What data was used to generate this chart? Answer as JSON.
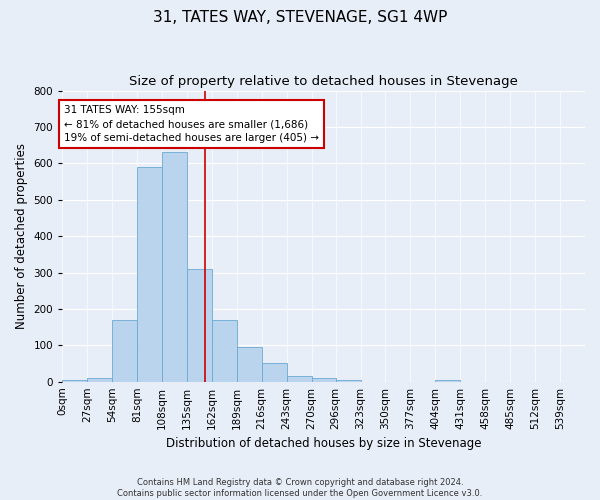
{
  "title": "31, TATES WAY, STEVENAGE, SG1 4WP",
  "subtitle": "Size of property relative to detached houses in Stevenage",
  "xlabel": "Distribution of detached houses by size in Stevenage",
  "ylabel": "Number of detached properties",
  "bar_color": "#bad4ed",
  "bar_edge_color": "#6aaad4",
  "background_color": "#e8eef8",
  "fig_background_color": "#e8eef8",
  "grid_color": "#ffffff",
  "bin_edges": [
    0,
    27,
    54,
    81,
    108,
    135,
    162,
    189,
    216,
    243,
    270,
    296,
    323,
    350,
    377,
    404,
    431,
    458,
    485,
    512,
    539
  ],
  "bar_heights": [
    5,
    10,
    170,
    590,
    630,
    310,
    170,
    95,
    50,
    15,
    10,
    5,
    0,
    0,
    0,
    5,
    0,
    0,
    0,
    0
  ],
  "ylim": [
    0,
    800
  ],
  "yticks": [
    0,
    100,
    200,
    300,
    400,
    500,
    600,
    700,
    800
  ],
  "property_size": 155,
  "vline_color": "#cc0000",
  "annotation_text": "31 TATES WAY: 155sqm\n← 81% of detached houses are smaller (1,686)\n19% of semi-detached houses are larger (405) →",
  "annotation_box_color": "#ffffff",
  "annotation_box_edge": "#cc0000",
  "footer_line1": "Contains HM Land Registry data © Crown copyright and database right 2024.",
  "footer_line2": "Contains public sector information licensed under the Open Government Licence v3.0.",
  "title_fontsize": 11,
  "subtitle_fontsize": 9.5,
  "tick_fontsize": 7.5,
  "axis_label_fontsize": 8.5,
  "annotation_fontsize": 7.5,
  "footer_fontsize": 6.0
}
